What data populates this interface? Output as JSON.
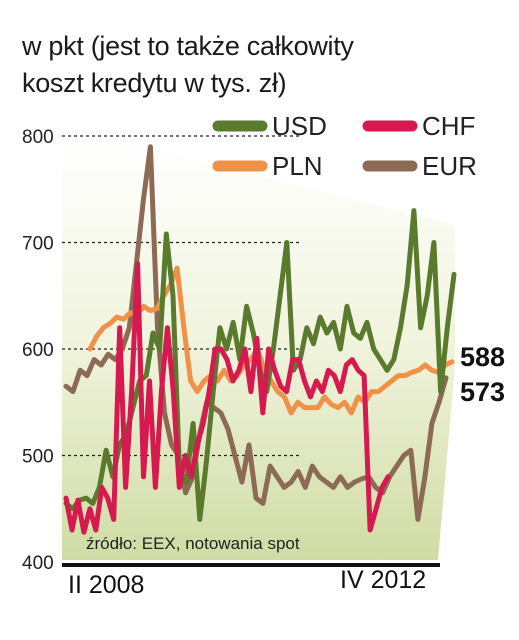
{
  "title_line1": "w pkt (jest to także całkowity",
  "title_line2": "koszt kredytu w tys. zł)",
  "chart_data": {
    "type": "line",
    "ylim": [
      400,
      800
    ],
    "y_ticks": [
      "800",
      "700",
      "600",
      "500",
      "400"
    ],
    "x_labels": [
      "II 2008",
      "IV 2012"
    ],
    "source": "źródło: EEX, notowania spot",
    "end_labels": [
      "588",
      "573"
    ],
    "legend": [
      {
        "name": "USD",
        "color": "#5a7a2e"
      },
      {
        "name": "CHF",
        "color": "#d6194f"
      },
      {
        "name": "PLN",
        "color": "#f0914a"
      },
      {
        "name": "EUR",
        "color": "#8d6a55"
      }
    ],
    "series": [
      {
        "name": "USD",
        "color": "#5a7a2e",
        "values": [
          455,
          450,
          458,
          460,
          455,
          470,
          505,
          480,
          510,
          520,
          545,
          570,
          575,
          615,
          600,
          708,
          650,
          480,
          475,
          530,
          440,
          495,
          560,
          620,
          600,
          625,
          590,
          640,
          615,
          580,
          560,
          600,
          650,
          700,
          580,
          590,
          620,
          605,
          630,
          615,
          625,
          600,
          640,
          615,
          610,
          625,
          600,
          590,
          580,
          590,
          620,
          660,
          730,
          620,
          650,
          700,
          560,
          620,
          670
        ]
      },
      {
        "name": "CHF",
        "color": "#d6194f",
        "values": [
          460,
          430,
          458,
          428,
          450,
          430,
          470,
          460,
          440,
          620,
          470,
          560,
          680,
          480,
          570,
          470,
          560,
          620,
          560,
          470,
          500,
          480,
          510,
          530,
          560,
          600,
          600,
          590,
          570,
          580,
          600,
          560,
          610,
          540,
          600,
          580,
          565,
          560,
          590,
          590,
          570,
          555,
          570,
          560,
          580,
          575,
          560,
          585,
          590,
          580,
          575,
          430,
          450,
          470,
          480
        ]
      },
      {
        "name": "PLN",
        "color": "#f0914a",
        "values": [
          600,
          612,
          620,
          624,
          630,
          628,
          634,
          632,
          640,
          636,
          638,
          650,
          660,
          676,
          620,
          570,
          560,
          570,
          575,
          570,
          580,
          570,
          575,
          585,
          590,
          600,
          580,
          570,
          560,
          555,
          540,
          550,
          545,
          545,
          545,
          555,
          548,
          545,
          550,
          540,
          555,
          550,
          560,
          560,
          565,
          570,
          575,
          575,
          578,
          580,
          585,
          580,
          578,
          585,
          588
        ]
      },
      {
        "name": "EUR",
        "color": "#8d6a55",
        "values": [
          565,
          560,
          580,
          575,
          590,
          585,
          595,
          590,
          600,
          620,
          680,
          740,
          790,
          620,
          540,
          510,
          500,
          465,
          480,
          520,
          550,
          545,
          540,
          525,
          500,
          475,
          510,
          460,
          455,
          490,
          480,
          470,
          475,
          485,
          470,
          490,
          480,
          475,
          470,
          480,
          470,
          475,
          478,
          480,
          470,
          465,
          480,
          490,
          500,
          505,
          440,
          480,
          530,
          550,
          573
        ]
      }
    ]
  }
}
